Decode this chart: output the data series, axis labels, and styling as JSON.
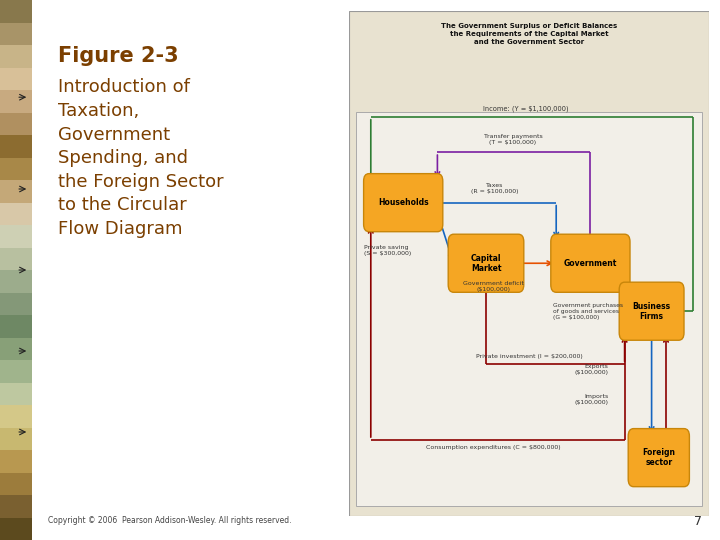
{
  "title_bold": "Figure 2-3",
  "title_body": "Introduction of\nTaxation,\nGovernment\nSpending, and\nthe Foreign Sector\nto the Circular\nFlow Diagram",
  "title_color": "#7B3F00",
  "diagram_title": "The Government Surplus or Deficit Balances\nthe Requirements of the Capital Market\nand the Government Sector",
  "box_fill": "#F5A623",
  "box_edge": "#C8860A",
  "diagram_outer_bg": "#E8E2D0",
  "diagram_inner_bg": "#F2EFE8",
  "copyright": "Copyright © 2006  Pearson Addison-Wesley. All rights reserved.",
  "page_num": "7",
  "sidebar_colors": [
    "#5C4A1E",
    "#7A6030",
    "#9C7C3C",
    "#B89850",
    "#C8B870",
    "#D4C888",
    "#BEC8A0",
    "#A0B48C",
    "#88A078",
    "#6E8864",
    "#849878",
    "#9CAC8C",
    "#B8C0A0",
    "#CED0B4",
    "#D8C8A8",
    "#C4A878",
    "#A88848",
    "#8C6C30",
    "#B09060",
    "#C8AA80",
    "#D8C098",
    "#C8B488",
    "#A89468",
    "#88784C"
  ],
  "green": "#2E7D32",
  "purple": "#7B1FA2",
  "blue": "#1565C0",
  "darkred": "#8B0000",
  "orange_arrow": "#E65100",
  "red_arrow": "#C62828"
}
